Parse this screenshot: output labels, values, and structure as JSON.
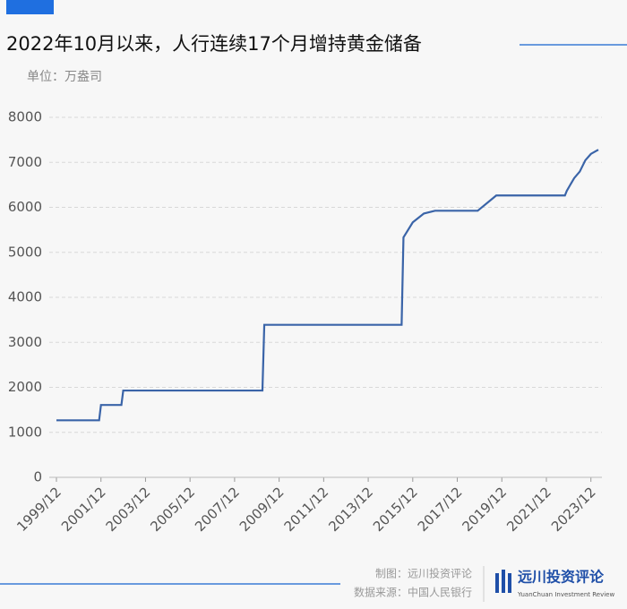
{
  "chart_data": {
    "type": "line",
    "title": "2022年10月以来，人行连续17个月增持黄金储备",
    "subtitle": "单位：万盎司",
    "x": [
      "1999/12",
      "2001/11",
      "2001/12",
      "2002/11",
      "2002/12",
      "2009/03",
      "2009/04",
      "2015/06",
      "2015/07",
      "2015/12",
      "2016/06",
      "2016/12",
      "2018/11",
      "2019/09",
      "2022/10",
      "2022/11",
      "2023/03",
      "2023/06",
      "2023/09",
      "2023/12",
      "2024/04"
    ],
    "series": [
      {
        "name": "黄金储备",
        "color": "#3a64a8",
        "values": [
          1267,
          1267,
          1608,
          1608,
          1929,
          1929,
          3389,
          3389,
          5332,
          5666,
          5862,
          5924,
          5924,
          6264,
          6264,
          6367,
          6650,
          6795,
          7046,
          7187,
          7280
        ]
      }
    ],
    "xlim": [
      "1999/12",
      "2024/04"
    ],
    "xticks": [
      "1999/12",
      "2001/12",
      "2003/12",
      "2005/12",
      "2007/12",
      "2009/12",
      "2011/12",
      "2013/12",
      "2015/12",
      "2017/12",
      "2019/12",
      "2021/12",
      "2023/12"
    ],
    "ylim": [
      0,
      8000
    ],
    "yticks": [
      0,
      1000,
      2000,
      3000,
      4000,
      5000,
      6000,
      7000,
      8000
    ],
    "grid": true
  },
  "footer": {
    "credit": "制图：远川投资评论",
    "source": "数据来源：中国人民银行",
    "logo": "远川投资评论",
    "logo_sub": "YuanChuan Investment Review"
  }
}
